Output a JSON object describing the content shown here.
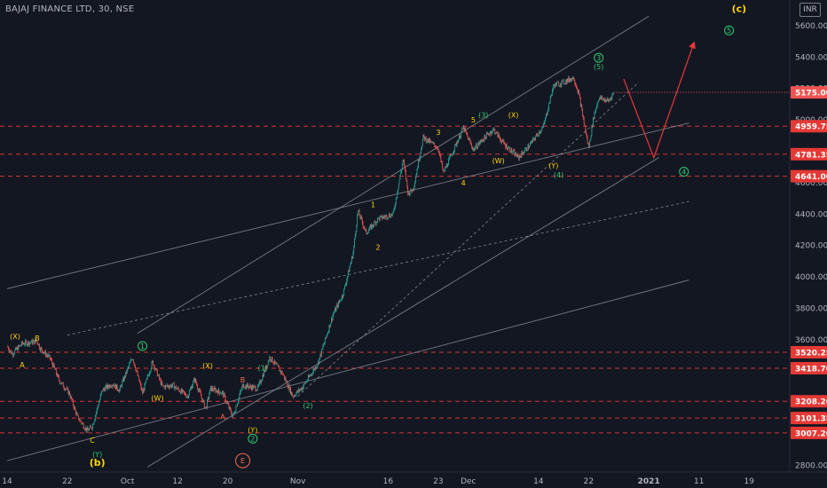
{
  "header": {
    "title": "BAJAJ FINANCE LTD, 30, NSE",
    "currency": "INR"
  },
  "colors": {
    "background": "#131722",
    "up": "#26a69a",
    "down": "#ef5350",
    "level": "#e53935",
    "price_tag_bg": "#e53935",
    "current_tag_bg": "#ef5350",
    "trendline": "#8c8f99",
    "wave_yellow": "#ffd600",
    "wave_green": "#2ecc71",
    "wave_orange": "#ef6c4a",
    "projection": "#e53935",
    "axis_text": "#b2b5be"
  },
  "chart_data": {
    "type": "candlestick",
    "symbol": "BAJAJ FINANCE LTD",
    "interval": "30",
    "exchange": "NSE",
    "ylim": [
      2780,
      5750
    ],
    "y_ticks": [
      2800,
      3000,
      3200,
      3400,
      3600,
      3800,
      4000,
      4200,
      4400,
      4600,
      4800,
      5000,
      5200,
      5400,
      5600
    ],
    "x_ticks": [
      {
        "label": "14",
        "t": 0
      },
      {
        "label": "22",
        "t": 6
      },
      {
        "label": "Oct",
        "t": 12
      },
      {
        "label": "12",
        "t": 17
      },
      {
        "label": "20",
        "t": 22
      },
      {
        "label": "Nov",
        "t": 29
      },
      {
        "label": "16",
        "t": 38
      },
      {
        "label": "23",
        "t": 43
      },
      {
        "label": "Dec",
        "t": 46
      },
      {
        "label": "14",
        "t": 53
      },
      {
        "label": "22",
        "t": 58
      },
      {
        "label": "2021",
        "t": 64
      },
      {
        "label": "11",
        "t": 69
      },
      {
        "label": "19",
        "t": 74
      }
    ],
    "price_path": [
      [
        0,
        3560
      ],
      [
        0.5,
        3510
      ],
      [
        1.5,
        3575
      ],
      [
        3,
        3590
      ],
      [
        3.3,
        3545
      ],
      [
        4.3,
        3480
      ],
      [
        5.2,
        3340
      ],
      [
        6.2,
        3260
      ],
      [
        7,
        3110
      ],
      [
        8,
        3020
      ],
      [
        8.5,
        3050
      ],
      [
        9.5,
        3280
      ],
      [
        10.5,
        3320
      ],
      [
        11.2,
        3280
      ],
      [
        12.5,
        3490
      ],
      [
        13.5,
        3260
      ],
      [
        14.5,
        3460
      ],
      [
        15.5,
        3300
      ],
      [
        16.5,
        3310
      ],
      [
        18,
        3240
      ],
      [
        18.7,
        3350
      ],
      [
        19.8,
        3160
      ],
      [
        20.3,
        3290
      ],
      [
        21.5,
        3260
      ],
      [
        22.5,
        3110
      ],
      [
        23.5,
        3310
      ],
      [
        25,
        3290
      ],
      [
        26.2,
        3490
      ],
      [
        27.5,
        3380
      ],
      [
        28.5,
        3240
      ],
      [
        29.5,
        3300
      ],
      [
        31,
        3450
      ],
      [
        32.5,
        3760
      ],
      [
        33.5,
        3890
      ],
      [
        34.5,
        4150
      ],
      [
        35,
        4420
      ],
      [
        35.8,
        4280
      ],
      [
        37,
        4370
      ],
      [
        38.5,
        4400
      ],
      [
        39.5,
        4750
      ],
      [
        40,
        4530
      ],
      [
        40.5,
        4560
      ],
      [
        41.5,
        4890
      ],
      [
        43,
        4820
      ],
      [
        43.5,
        4660
      ],
      [
        45.5,
        4950
      ],
      [
        46.5,
        4810
      ],
      [
        47.5,
        4880
      ],
      [
        48.5,
        4940
      ],
      [
        49.5,
        4850
      ],
      [
        51,
        4760
      ],
      [
        52,
        4830
      ],
      [
        53.5,
        4960
      ],
      [
        54.5,
        5220
      ],
      [
        55.5,
        5240
      ],
      [
        56.5,
        5270
      ],
      [
        57,
        5170
      ],
      [
        58,
        4820
      ],
      [
        58.5,
        5020
      ],
      [
        59,
        5140
      ],
      [
        60,
        5120
      ],
      [
        60.5,
        5175
      ]
    ],
    "horizontal_levels": [
      4959.75,
      4781.35,
      4641.0,
      3520.25,
      3418.7,
      3208.2,
      3101.35,
      3007.2
    ],
    "price_tags": [
      "4959.75",
      "4781.35",
      "4641.00",
      "3520.25",
      "3418.70",
      "3208.20",
      "3101.35",
      "3007.20"
    ],
    "current_price": 5175.0,
    "current_tag": "5175.00",
    "trendlines": [
      {
        "from": [
          0,
          3925
        ],
        "to": [
          68,
          4980
        ]
      },
      {
        "from": [
          0,
          2830
        ],
        "to": [
          68,
          3980
        ]
      },
      {
        "from": [
          13,
          3640
        ],
        "to": [
          64,
          5660
        ]
      },
      {
        "from": [
          14,
          2790
        ],
        "to": [
          65,
          4760
        ]
      },
      {
        "from": [
          6,
          3630
        ],
        "to": [
          68,
          4480
        ],
        "dashed": true
      },
      {
        "from": [
          29,
          3240
        ],
        "to": [
          63,
          5240
        ],
        "dashed": true
      }
    ],
    "projection": [
      [
        61.5,
        5260
      ],
      [
        64.5,
        4760
      ],
      [
        68.5,
        5490
      ]
    ],
    "wave_labels": [
      {
        "text": "(X)",
        "t": 0.8,
        "p": 3620,
        "style": "yellow"
      },
      {
        "text": "B",
        "t": 3,
        "p": 3610,
        "style": "yellow"
      },
      {
        "text": "A",
        "t": 1.5,
        "p": 3440,
        "style": "yellow"
      },
      {
        "text": "C",
        "t": 8.5,
        "p": 2960,
        "style": "yellow"
      },
      {
        "text": "(Y)",
        "t": 9,
        "p": 2870,
        "style": "green"
      },
      {
        "text": "(b)",
        "t": 9,
        "p": 2820,
        "style": "yellow-big"
      },
      {
        "text": "1",
        "t": 13.5,
        "p": 3560,
        "style": "green-circle"
      },
      {
        "text": "(W)",
        "t": 15,
        "p": 3230,
        "style": "yellow"
      },
      {
        "text": "(X)",
        "t": 20,
        "p": 3435,
        "style": "yellow"
      },
      {
        "text": "B",
        "t": 23.5,
        "p": 3345,
        "style": "orange"
      },
      {
        "text": "A",
        "t": 21.5,
        "p": 3110,
        "style": "orange"
      },
      {
        "text": "(Y)",
        "t": 24.5,
        "p": 3025,
        "style": "yellow"
      },
      {
        "text": "2",
        "t": 24.5,
        "p": 2970,
        "style": "green-circle"
      },
      {
        "text": "E",
        "t": 23.5,
        "p": 2830,
        "style": "orange-circle"
      },
      {
        "text": "(1)",
        "t": 25.5,
        "p": 3420,
        "style": "green"
      },
      {
        "text": "(2)",
        "t": 30,
        "p": 3180,
        "style": "green"
      },
      {
        "text": "1",
        "t": 36.5,
        "p": 4460,
        "style": "yellow"
      },
      {
        "text": "2",
        "t": 37,
        "p": 4190,
        "style": "yellow"
      },
      {
        "text": "3",
        "t": 43,
        "p": 4920,
        "style": "yellow"
      },
      {
        "text": "4",
        "t": 45.5,
        "p": 4600,
        "style": "yellow"
      },
      {
        "text": "5",
        "t": 46.5,
        "p": 5000,
        "style": "yellow"
      },
      {
        "text": "(3)",
        "t": 47.5,
        "p": 5030,
        "style": "green"
      },
      {
        "text": "(X)",
        "t": 50.5,
        "p": 5030,
        "style": "yellow"
      },
      {
        "text": "(W)",
        "t": 49,
        "p": 4740,
        "style": "yellow"
      },
      {
        "text": "(Y)",
        "t": 54.5,
        "p": 4710,
        "style": "yellow"
      },
      {
        "text": "(4)",
        "t": 55,
        "p": 4650,
        "style": "green"
      },
      {
        "text": "3",
        "t": 59,
        "p": 5395,
        "style": "green-circle"
      },
      {
        "text": "(5)",
        "t": 59,
        "p": 5340,
        "style": "green"
      },
      {
        "text": "4",
        "t": 67.5,
        "p": 4670,
        "style": "green-circle"
      },
      {
        "text": "5",
        "t": 72,
        "p": 5570,
        "style": "green-circle"
      },
      {
        "text": "(c)",
        "t": 73,
        "p": 5710,
        "style": "yellow-big"
      }
    ]
  }
}
